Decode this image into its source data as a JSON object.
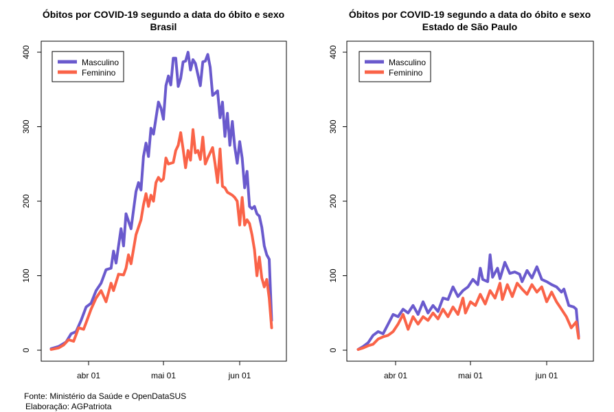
{
  "chart_data": [
    {
      "type": "line",
      "title": "Óbitos por COVID-19 segundo a data do óbito e sexo",
      "subtitle": "Brasil",
      "xlabel": "",
      "ylabel": "",
      "x_ticks": [
        "abr 01",
        "mai 01",
        "jun 01"
      ],
      "y_ticks": [
        "0",
        "100",
        "200",
        "300",
        "400"
      ],
      "ylim": [
        0,
        400
      ],
      "legend_position": "top-left",
      "grid": false,
      "series": [
        {
          "name": "Masculino",
          "color": "#6A5ACD",
          "points": [
            [
              "2020-03-17",
              2
            ],
            [
              "2020-03-20",
              5
            ],
            [
              "2020-03-23",
              11
            ],
            [
              "2020-03-25",
              22
            ],
            [
              "2020-03-27",
              25
            ],
            [
              "2020-03-29",
              40
            ],
            [
              "2020-03-31",
              58
            ],
            [
              "2020-04-02",
              63
            ],
            [
              "2020-04-04",
              80
            ],
            [
              "2020-04-06",
              90
            ],
            [
              "2020-04-08",
              108
            ],
            [
              "2020-04-10",
              110
            ],
            [
              "2020-04-11",
              133
            ],
            [
              "2020-04-12",
              117
            ],
            [
              "2020-04-14",
              163
            ],
            [
              "2020-04-15",
              140
            ],
            [
              "2020-04-16",
              183
            ],
            [
              "2020-04-18",
              163
            ],
            [
              "2020-04-20",
              213
            ],
            [
              "2020-04-21",
              225
            ],
            [
              "2020-04-22",
              215
            ],
            [
              "2020-04-23",
              260
            ],
            [
              "2020-04-24",
              278
            ],
            [
              "2020-04-25",
              260
            ],
            [
              "2020-04-26",
              298
            ],
            [
              "2020-04-27",
              290
            ],
            [
              "2020-04-29",
              333
            ],
            [
              "2020-04-30",
              325
            ],
            [
              "2020-05-01",
              310
            ],
            [
              "2020-05-02",
              355
            ],
            [
              "2020-05-03",
              368
            ],
            [
              "2020-05-04",
              356
            ],
            [
              "2020-05-05",
              392
            ],
            [
              "2020-05-06",
              392
            ],
            [
              "2020-05-07",
              354
            ],
            [
              "2020-05-08",
              365
            ],
            [
              "2020-05-09",
              387
            ],
            [
              "2020-05-10",
              388
            ],
            [
              "2020-05-11",
              400
            ],
            [
              "2020-05-12",
              376
            ],
            [
              "2020-05-13",
              390
            ],
            [
              "2020-05-14",
              385
            ],
            [
              "2020-05-16",
              355
            ],
            [
              "2020-05-17",
              387
            ],
            [
              "2020-05-18",
              388
            ],
            [
              "2020-05-19",
              397
            ],
            [
              "2020-05-20",
              380
            ],
            [
              "2020-05-21",
              342
            ],
            [
              "2020-05-22",
              345
            ],
            [
              "2020-05-23",
              348
            ],
            [
              "2020-05-24",
              312
            ],
            [
              "2020-05-25",
              333
            ],
            [
              "2020-05-26",
              287
            ],
            [
              "2020-05-27",
              318
            ],
            [
              "2020-05-28",
              275
            ],
            [
              "2020-05-29",
              307
            ],
            [
              "2020-05-30",
              273
            ],
            [
              "2020-05-31",
              251
            ],
            [
              "2020-06-01",
              280
            ],
            [
              "2020-06-02",
              258
            ],
            [
              "2020-06-03",
              218
            ],
            [
              "2020-06-04",
              240
            ],
            [
              "2020-06-05",
              193
            ],
            [
              "2020-06-06",
              190
            ],
            [
              "2020-06-07",
              193
            ],
            [
              "2020-06-08",
              183
            ],
            [
              "2020-06-09",
              180
            ],
            [
              "2020-06-10",
              165
            ],
            [
              "2020-06-11",
              140
            ],
            [
              "2020-06-12",
              128
            ],
            [
              "2020-06-13",
              122
            ],
            [
              "2020-06-14",
              40
            ]
          ]
        },
        {
          "name": "Feminino",
          "color": "#FA6348",
          "points": [
            [
              "2020-03-17",
              1
            ],
            [
              "2020-03-20",
              3
            ],
            [
              "2020-03-22",
              7
            ],
            [
              "2020-03-24",
              14
            ],
            [
              "2020-03-26",
              12
            ],
            [
              "2020-03-28",
              30
            ],
            [
              "2020-03-30",
              28
            ],
            [
              "2020-03-31",
              37
            ],
            [
              "2020-04-02",
              55
            ],
            [
              "2020-04-04",
              70
            ],
            [
              "2020-04-06",
              80
            ],
            [
              "2020-04-08",
              65
            ],
            [
              "2020-04-10",
              90
            ],
            [
              "2020-04-11",
              80
            ],
            [
              "2020-04-13",
              102
            ],
            [
              "2020-04-15",
              101
            ],
            [
              "2020-04-16",
              110
            ],
            [
              "2020-04-17",
              128
            ],
            [
              "2020-04-18",
              116
            ],
            [
              "2020-04-20",
              155
            ],
            [
              "2020-04-22",
              175
            ],
            [
              "2020-04-23",
              195
            ],
            [
              "2020-04-24",
              210
            ],
            [
              "2020-04-25",
              193
            ],
            [
              "2020-04-26",
              208
            ],
            [
              "2020-04-27",
              200
            ],
            [
              "2020-04-28",
              225
            ],
            [
              "2020-04-29",
              232
            ],
            [
              "2020-04-30",
              227
            ],
            [
              "2020-05-01",
              230
            ],
            [
              "2020-05-02",
              258
            ],
            [
              "2020-05-03",
              250
            ],
            [
              "2020-05-05",
              252
            ],
            [
              "2020-05-06",
              268
            ],
            [
              "2020-05-07",
              275
            ],
            [
              "2020-05-08",
              292
            ],
            [
              "2020-05-09",
              270
            ],
            [
              "2020-05-10",
              245
            ],
            [
              "2020-05-11",
              268
            ],
            [
              "2020-05-12",
              255
            ],
            [
              "2020-05-13",
              296
            ],
            [
              "2020-05-14",
              265
            ],
            [
              "2020-05-15",
              268
            ],
            [
              "2020-05-16",
              256
            ],
            [
              "2020-05-17",
              286
            ],
            [
              "2020-05-18",
              250
            ],
            [
              "2020-05-19",
              258
            ],
            [
              "2020-05-20",
              265
            ],
            [
              "2020-05-21",
              272
            ],
            [
              "2020-05-22",
              250
            ],
            [
              "2020-05-23",
              225
            ],
            [
              "2020-05-24",
              270
            ],
            [
              "2020-05-25",
              220
            ],
            [
              "2020-05-26",
              218
            ],
            [
              "2020-05-27",
              212
            ],
            [
              "2020-05-28",
              210
            ],
            [
              "2020-05-29",
              208
            ],
            [
              "2020-05-30",
              205
            ],
            [
              "2020-05-31",
              200
            ],
            [
              "2020-06-01",
              168
            ],
            [
              "2020-06-02",
              205
            ],
            [
              "2020-06-03",
              168
            ],
            [
              "2020-06-04",
              175
            ],
            [
              "2020-06-05",
              170
            ],
            [
              "2020-06-06",
              155
            ],
            [
              "2020-06-07",
              135
            ],
            [
              "2020-06-08",
              100
            ],
            [
              "2020-06-09",
              125
            ],
            [
              "2020-06-10",
              97
            ],
            [
              "2020-06-11",
              85
            ],
            [
              "2020-06-12",
              95
            ],
            [
              "2020-06-13",
              70
            ],
            [
              "2020-06-14",
              30
            ]
          ]
        }
      ]
    },
    {
      "type": "line",
      "title": "Óbitos por COVID-19 segundo a data do óbito e sexo",
      "subtitle": "Estado de São Paulo",
      "xlabel": "",
      "ylabel": "",
      "x_ticks": [
        "abr 01",
        "mai 01",
        "jun 01"
      ],
      "y_ticks": [
        "0",
        "100",
        "200",
        "300",
        "400"
      ],
      "ylim": [
        0,
        400
      ],
      "legend_position": "top-left",
      "grid": false,
      "series": [
        {
          "name": "Masculino",
          "color": "#6A5ACD",
          "points": [
            [
              "2020-03-17",
              1
            ],
            [
              "2020-03-19",
              5
            ],
            [
              "2020-03-21",
              10
            ],
            [
              "2020-03-23",
              20
            ],
            [
              "2020-03-25",
              25
            ],
            [
              "2020-03-27",
              22
            ],
            [
              "2020-03-29",
              35
            ],
            [
              "2020-03-31",
              48
            ],
            [
              "2020-04-02",
              45
            ],
            [
              "2020-04-04",
              55
            ],
            [
              "2020-04-06",
              50
            ],
            [
              "2020-04-08",
              60
            ],
            [
              "2020-04-10",
              48
            ],
            [
              "2020-04-12",
              65
            ],
            [
              "2020-04-14",
              50
            ],
            [
              "2020-04-16",
              60
            ],
            [
              "2020-04-18",
              52
            ],
            [
              "2020-04-20",
              70
            ],
            [
              "2020-04-22",
              68
            ],
            [
              "2020-04-24",
              85
            ],
            [
              "2020-04-26",
              72
            ],
            [
              "2020-04-28",
              80
            ],
            [
              "2020-04-30",
              85
            ],
            [
              "2020-05-02",
              95
            ],
            [
              "2020-05-04",
              88
            ],
            [
              "2020-05-05",
              110
            ],
            [
              "2020-05-06",
              95
            ],
            [
              "2020-05-08",
              92
            ],
            [
              "2020-05-09",
              128
            ],
            [
              "2020-05-10",
              98
            ],
            [
              "2020-05-12",
              110
            ],
            [
              "2020-05-13",
              96
            ],
            [
              "2020-05-15",
              118
            ],
            [
              "2020-05-17",
              103
            ],
            [
              "2020-05-19",
              105
            ],
            [
              "2020-05-21",
              102
            ],
            [
              "2020-05-22",
              92
            ],
            [
              "2020-05-24",
              107
            ],
            [
              "2020-05-26",
              97
            ],
            [
              "2020-05-28",
              112
            ],
            [
              "2020-05-30",
              95
            ],
            [
              "2020-06-01",
              92
            ],
            [
              "2020-06-03",
              88
            ],
            [
              "2020-06-05",
              85
            ],
            [
              "2020-06-07",
              78
            ],
            [
              "2020-06-08",
              82
            ],
            [
              "2020-06-10",
              60
            ],
            [
              "2020-06-12",
              58
            ],
            [
              "2020-06-13",
              55
            ],
            [
              "2020-06-14",
              18
            ]
          ]
        },
        {
          "name": "Feminino",
          "color": "#FA6348",
          "points": [
            [
              "2020-03-17",
              1
            ],
            [
              "2020-03-19",
              3
            ],
            [
              "2020-03-21",
              6
            ],
            [
              "2020-03-23",
              8
            ],
            [
              "2020-03-25",
              15
            ],
            [
              "2020-03-27",
              18
            ],
            [
              "2020-03-29",
              20
            ],
            [
              "2020-03-31",
              25
            ],
            [
              "2020-04-02",
              35
            ],
            [
              "2020-04-04",
              48
            ],
            [
              "2020-04-06",
              28
            ],
            [
              "2020-04-08",
              45
            ],
            [
              "2020-04-10",
              35
            ],
            [
              "2020-04-12",
              45
            ],
            [
              "2020-04-14",
              40
            ],
            [
              "2020-04-16",
              50
            ],
            [
              "2020-04-18",
              42
            ],
            [
              "2020-04-20",
              55
            ],
            [
              "2020-04-22",
              45
            ],
            [
              "2020-04-24",
              58
            ],
            [
              "2020-04-26",
              48
            ],
            [
              "2020-04-28",
              70
            ],
            [
              "2020-04-29",
              50
            ],
            [
              "2020-05-01",
              65
            ],
            [
              "2020-05-03",
              60
            ],
            [
              "2020-05-05",
              75
            ],
            [
              "2020-05-07",
              62
            ],
            [
              "2020-05-09",
              80
            ],
            [
              "2020-05-11",
              70
            ],
            [
              "2020-05-13",
              90
            ],
            [
              "2020-05-14",
              68
            ],
            [
              "2020-05-16",
              88
            ],
            [
              "2020-05-18",
              72
            ],
            [
              "2020-05-20",
              90
            ],
            [
              "2020-05-22",
              82
            ],
            [
              "2020-05-24",
              75
            ],
            [
              "2020-05-26",
              88
            ],
            [
              "2020-05-28",
              78
            ],
            [
              "2020-05-30",
              85
            ],
            [
              "2020-06-01",
              65
            ],
            [
              "2020-06-03",
              78
            ],
            [
              "2020-06-05",
              65
            ],
            [
              "2020-06-07",
              55
            ],
            [
              "2020-06-09",
              45
            ],
            [
              "2020-06-11",
              30
            ],
            [
              "2020-06-13",
              38
            ],
            [
              "2020-06-14",
              16
            ]
          ]
        }
      ]
    }
  ],
  "footer": {
    "source": "Fonte: Ministério da Saúde e OpenDataSUS",
    "credit": "Elaboração: AGPatriota"
  }
}
